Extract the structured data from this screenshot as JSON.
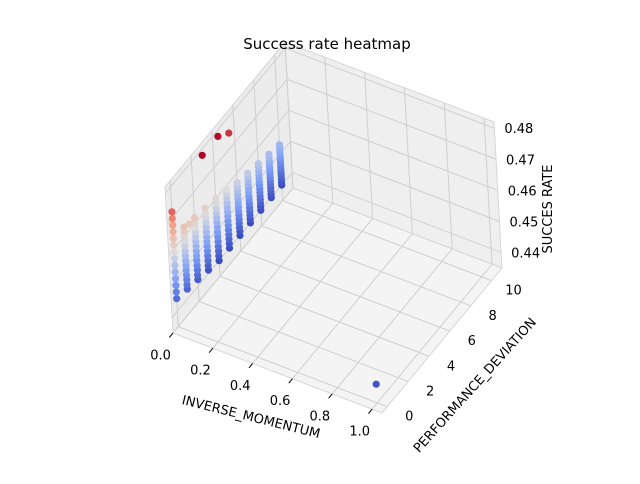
{
  "chart_data": {
    "type": "scatter",
    "projection": "3d",
    "colormap": "coolwarm",
    "title": "Success rate heatmap",
    "xlabel": "INVERSE_MOMENTUM",
    "ylabel": "PERFORMANCE_DEVIATION",
    "zlabel": "SUCCES RATE",
    "xlim": [
      0.0,
      1.05
    ],
    "ylim": [
      -0.5,
      11
    ],
    "zlim": [
      0.435,
      0.482
    ],
    "xticks": [
      "0.0",
      "0.2",
      "0.4",
      "0.6",
      "0.8",
      "1.0"
    ],
    "yticks": [
      "0",
      "2",
      "4",
      "6",
      "8",
      "10"
    ],
    "zticks": [
      "0.44",
      "0.45",
      "0.46",
      "0.47",
      "0.48"
    ],
    "grid": true,
    "columns": [
      {
        "x": 0.0,
        "y": 0.0,
        "z_min": 0.444,
        "z_max": 0.472
      },
      {
        "x": 0.0,
        "y": 1.0,
        "z_min": 0.443,
        "z_max": 0.463
      },
      {
        "x": 0.0,
        "y": 2.0,
        "z_min": 0.442,
        "z_max": 0.462
      },
      {
        "x": 0.0,
        "y": 3.0,
        "z_min": 0.441,
        "z_max": 0.461
      },
      {
        "x": 0.0,
        "y": 4.0,
        "z_min": 0.44,
        "z_max": 0.46
      },
      {
        "x": 0.0,
        "y": 5.0,
        "z_min": 0.44,
        "z_max": 0.459
      },
      {
        "x": 0.0,
        "y": 6.0,
        "z_min": 0.44,
        "z_max": 0.457
      },
      {
        "x": 0.0,
        "y": 7.0,
        "z_min": 0.44,
        "z_max": 0.456
      },
      {
        "x": 0.0,
        "y": 8.0,
        "z_min": 0.44,
        "z_max": 0.455
      },
      {
        "x": 0.0,
        "y": 9.0,
        "z_min": 0.44,
        "z_max": 0.454
      },
      {
        "x": 0.0,
        "y": 10.0,
        "z_min": 0.44,
        "z_max": 0.453
      }
    ],
    "outliers": [
      {
        "x": 0.0,
        "y": 3.0,
        "z": 0.478
      },
      {
        "x": 0.0,
        "y": 4.5,
        "z": 0.478
      },
      {
        "x": 0.0,
        "y": 5.5,
        "z": 0.475
      },
      {
        "x": 0.0,
        "y": 1.5,
        "z": 0.462
      },
      {
        "x": 1.0,
        "y": 0.0,
        "z": 0.441
      }
    ]
  }
}
